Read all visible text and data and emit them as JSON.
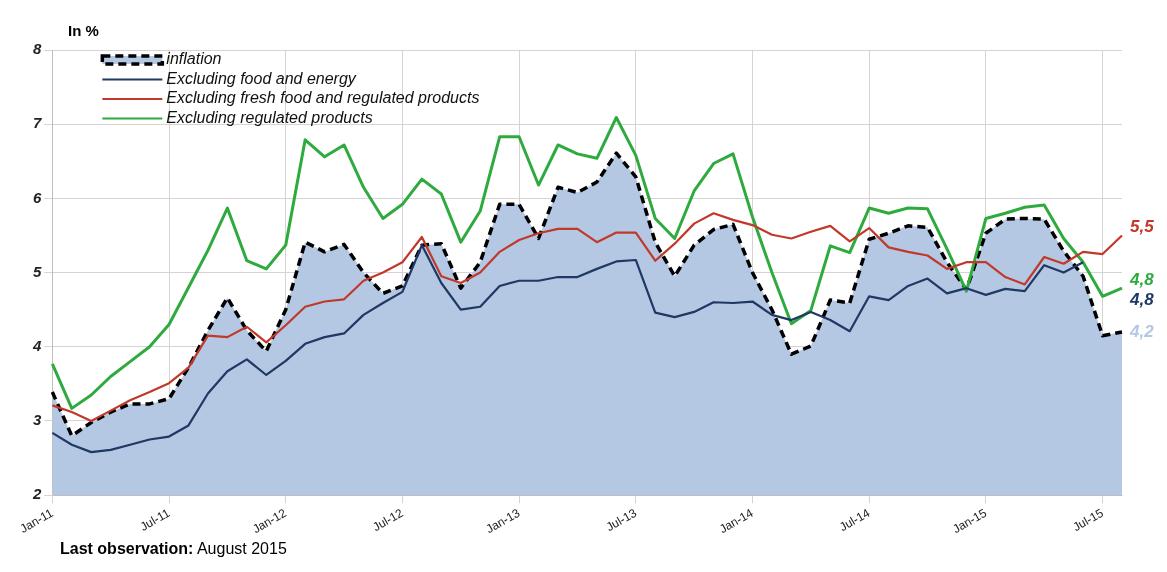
{
  "chart_data": {
    "type": "line",
    "ylabel": "In %",
    "categories": [
      "Jan-11",
      null,
      null,
      null,
      null,
      null,
      "Jul-11",
      null,
      null,
      null,
      null,
      null,
      "Jan-12",
      null,
      null,
      null,
      null,
      null,
      "Jul-12",
      null,
      null,
      null,
      null,
      null,
      "Jan-13",
      null,
      null,
      null,
      null,
      null,
      "Jul-13",
      null,
      null,
      null,
      null,
      null,
      "Jan-14",
      null,
      null,
      null,
      null,
      null,
      "Jul-14",
      null,
      null,
      null,
      null,
      null,
      "Jan-15",
      null,
      null,
      null,
      null,
      null,
      "Jul-15",
      null
    ],
    "series": [
      {
        "name": "inflation",
        "type": "area",
        "color": "#b4c7e3",
        "line_style": "dashed",
        "values": [
          3.39,
          2.8,
          2.98,
          3.12,
          3.23,
          3.23,
          3.3,
          3.72,
          4.22,
          4.66,
          4.22,
          3.94,
          4.5,
          5.41,
          5.28,
          5.38,
          5.0,
          4.72,
          4.82,
          5.37,
          5.39,
          4.79,
          5.14,
          5.92,
          5.92,
          5.46,
          6.15,
          6.08,
          6.22,
          6.61,
          6.29,
          5.41,
          4.95,
          5.37,
          5.58,
          5.65,
          5.0,
          4.5,
          3.9,
          4.01,
          4.63,
          4.59,
          5.45,
          5.53,
          5.63,
          5.61,
          5.14,
          4.77,
          5.53,
          5.72,
          5.73,
          5.72,
          5.29,
          4.95,
          4.15,
          4.2
        ],
        "value_labels": [
          null,
          null,
          null,
          null,
          null,
          null,
          null,
          null,
          null,
          null,
          null,
          null,
          null,
          null,
          null,
          null,
          null,
          null,
          null,
          null,
          null,
          null,
          null,
          null,
          null,
          null,
          null,
          null,
          null,
          null,
          null,
          null,
          null,
          null,
          null,
          null,
          null,
          null,
          null,
          null,
          null,
          null,
          null,
          null,
          null,
          null,
          null,
          null,
          null,
          null,
          null,
          null,
          null,
          null,
          null,
          "4,2"
        ]
      },
      {
        "name": "Excluding food and energy",
        "color": "#1f3864",
        "values": [
          2.84,
          2.68,
          2.58,
          2.61,
          2.68,
          2.75,
          2.79,
          2.94,
          3.37,
          3.67,
          3.83,
          3.62,
          3.81,
          4.04,
          4.13,
          4.18,
          4.43,
          4.59,
          4.74,
          5.37,
          4.86,
          4.5,
          4.54,
          4.82,
          4.89,
          4.89,
          4.94,
          4.94,
          5.05,
          5.15,
          5.17,
          4.46,
          4.4,
          4.47,
          4.6,
          4.59,
          4.61,
          4.43,
          4.36,
          4.47,
          4.36,
          4.21,
          4.68,
          4.63,
          4.82,
          4.92,
          4.72,
          4.79,
          4.7,
          4.78,
          4.75,
          5.1,
          5.0,
          5.14,
          null,
          null
        ]
      },
      {
        "name": "Excluding fresh food and regulated products",
        "color": "#c0392b",
        "values": [
          3.21,
          3.12,
          3.0,
          3.14,
          3.28,
          3.39,
          3.51,
          3.72,
          4.15,
          4.13,
          4.27,
          4.06,
          4.29,
          4.54,
          4.61,
          4.64,
          4.89,
          5.0,
          5.14,
          5.48,
          4.95,
          4.86,
          5.0,
          5.28,
          5.44,
          5.53,
          5.59,
          5.59,
          5.41,
          5.54,
          5.54,
          5.16,
          5.39,
          5.66,
          5.8,
          5.71,
          5.64,
          5.51,
          5.46,
          5.55,
          5.63,
          5.42,
          5.6,
          5.34,
          5.28,
          5.23,
          5.05,
          5.14,
          5.14,
          4.94,
          4.84,
          5.21,
          5.12,
          5.28,
          5.25,
          5.5
        ],
        "value_labels": [
          null,
          null,
          null,
          null,
          null,
          null,
          null,
          null,
          null,
          null,
          null,
          null,
          null,
          null,
          null,
          null,
          null,
          null,
          null,
          null,
          null,
          null,
          null,
          null,
          null,
          null,
          null,
          null,
          null,
          null,
          null,
          null,
          null,
          null,
          null,
          null,
          null,
          null,
          null,
          null,
          null,
          null,
          null,
          null,
          null,
          null,
          null,
          null,
          null,
          null,
          null,
          null,
          null,
          null,
          null,
          "5,5"
        ]
      },
      {
        "name": "Excluding regulated products",
        "color": "#2eaa3f",
        "values": [
          3.77,
          3.17,
          3.35,
          3.6,
          3.8,
          4.0,
          4.3,
          4.8,
          5.3,
          5.87,
          5.16,
          5.05,
          5.37,
          6.79,
          6.56,
          6.72,
          6.15,
          5.73,
          5.92,
          6.26,
          6.06,
          5.41,
          5.83,
          6.83,
          6.83,
          6.18,
          6.72,
          6.6,
          6.54,
          7.09,
          6.58,
          5.73,
          5.46,
          6.1,
          6.47,
          6.6,
          5.75,
          5.0,
          4.31,
          4.49,
          5.36,
          5.27,
          5.87,
          5.8,
          5.87,
          5.86,
          5.32,
          4.75,
          5.73,
          5.8,
          5.88,
          5.91,
          5.46,
          5.14,
          4.68,
          4.79
        ],
        "value_labels": [
          null,
          null,
          null,
          null,
          null,
          null,
          null,
          null,
          null,
          null,
          null,
          null,
          null,
          null,
          null,
          null,
          null,
          null,
          null,
          null,
          null,
          null,
          null,
          null,
          null,
          null,
          null,
          null,
          null,
          null,
          null,
          null,
          null,
          null,
          null,
          null,
          null,
          null,
          null,
          null,
          null,
          null,
          null,
          null,
          null,
          null,
          null,
          null,
          null,
          null,
          null,
          null,
          null,
          null,
          null,
          "4,8"
        ]
      }
    ],
    "ylim": [
      2,
      8
    ],
    "yticks": [
      2,
      3,
      4,
      5,
      6,
      7,
      8
    ],
    "grid": true,
    "legend": "top left",
    "annotations": [
      "4,8",
      "Last observation: August 2015"
    ]
  }
}
